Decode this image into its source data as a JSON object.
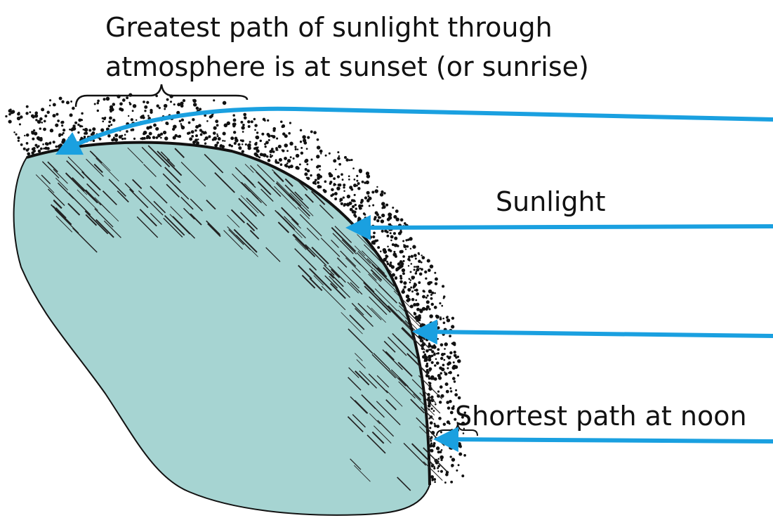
{
  "labels": {
    "title": [
      "Greatest path of sunlight through",
      "atmosphere is at sunset (or sunrise)"
    ],
    "sunlight": "Sunlight",
    "noon": "Shortest path at noon"
  }
}
